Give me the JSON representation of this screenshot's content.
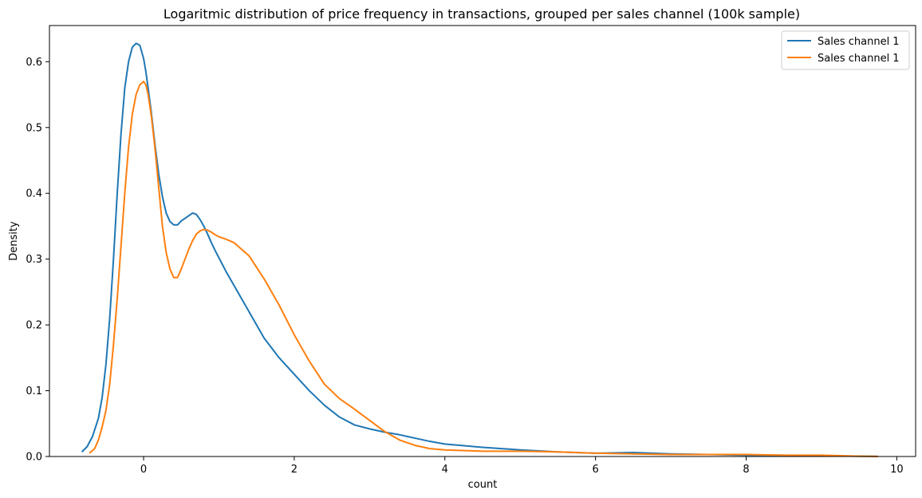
{
  "chart_data": {
    "type": "line",
    "title": "Logaritmic distribution of price frequency in transactions, grouped per sales channel (100k sample)",
    "xlabel": "count",
    "ylabel": "Density",
    "xlim": [
      -1.25,
      10.25
    ],
    "ylim": [
      0,
      0.655
    ],
    "xticks": [
      0,
      2,
      4,
      6,
      8,
      10
    ],
    "yticks": [
      0.0,
      0.1,
      0.2,
      0.3,
      0.4,
      0.5,
      0.6
    ],
    "grid": false,
    "legend": "top-right",
    "series": [
      {
        "name": "Sales channel 1",
        "color": "#1f77b4",
        "x": [
          -0.82,
          -0.75,
          -0.68,
          -0.6,
          -0.55,
          -0.5,
          -0.45,
          -0.4,
          -0.35,
          -0.3,
          -0.25,
          -0.2,
          -0.15,
          -0.1,
          -0.05,
          0.0,
          0.03,
          0.06,
          0.1,
          0.15,
          0.2,
          0.25,
          0.3,
          0.35,
          0.4,
          0.45,
          0.5,
          0.55,
          0.6,
          0.65,
          0.7,
          0.75,
          0.8,
          0.85,
          0.9,
          0.95,
          1.0,
          1.1,
          1.2,
          1.4,
          1.6,
          1.8,
          2.0,
          2.2,
          2.4,
          2.6,
          2.8,
          3.0,
          3.2,
          3.4,
          3.6,
          3.8,
          4.0,
          4.5,
          5.0,
          5.5,
          6.0,
          6.5,
          7.0,
          7.5,
          8.0,
          8.5,
          9.0,
          9.5,
          9.75
        ],
        "y": [
          0.007,
          0.015,
          0.03,
          0.058,
          0.09,
          0.14,
          0.21,
          0.3,
          0.4,
          0.49,
          0.56,
          0.6,
          0.622,
          0.628,
          0.625,
          0.605,
          0.585,
          0.56,
          0.525,
          0.475,
          0.43,
          0.395,
          0.37,
          0.357,
          0.352,
          0.352,
          0.358,
          0.362,
          0.366,
          0.37,
          0.368,
          0.36,
          0.35,
          0.338,
          0.325,
          0.313,
          0.302,
          0.28,
          0.26,
          0.22,
          0.18,
          0.15,
          0.125,
          0.1,
          0.078,
          0.06,
          0.048,
          0.042,
          0.037,
          0.033,
          0.028,
          0.023,
          0.019,
          0.014,
          0.01,
          0.007,
          0.005,
          0.006,
          0.004,
          0.003,
          0.002,
          0.002,
          0.001,
          0.0005,
          0.0002
        ]
      },
      {
        "name": "Sales channel 1",
        "color": "#ff7f0e",
        "x": [
          -0.72,
          -0.65,
          -0.6,
          -0.55,
          -0.5,
          -0.45,
          -0.4,
          -0.35,
          -0.3,
          -0.25,
          -0.2,
          -0.15,
          -0.1,
          -0.05,
          0.0,
          0.03,
          0.06,
          0.1,
          0.15,
          0.2,
          0.25,
          0.3,
          0.35,
          0.4,
          0.45,
          0.5,
          0.55,
          0.6,
          0.65,
          0.7,
          0.75,
          0.8,
          0.85,
          0.9,
          0.95,
          1.0,
          1.1,
          1.2,
          1.4,
          1.6,
          1.8,
          2.0,
          2.2,
          2.4,
          2.6,
          2.8,
          3.0,
          3.2,
          3.4,
          3.6,
          3.8,
          4.0,
          4.5,
          5.0,
          5.5,
          6.0,
          6.5,
          7.0,
          7.5,
          8.0,
          8.5,
          9.0,
          9.5,
          9.75
        ],
        "y": [
          0.005,
          0.012,
          0.025,
          0.045,
          0.07,
          0.11,
          0.17,
          0.24,
          0.32,
          0.4,
          0.47,
          0.52,
          0.55,
          0.565,
          0.57,
          0.565,
          0.55,
          0.52,
          0.47,
          0.41,
          0.35,
          0.31,
          0.285,
          0.272,
          0.272,
          0.285,
          0.3,
          0.315,
          0.328,
          0.338,
          0.343,
          0.345,
          0.344,
          0.341,
          0.337,
          0.334,
          0.33,
          0.325,
          0.305,
          0.27,
          0.23,
          0.185,
          0.145,
          0.11,
          0.088,
          0.072,
          0.055,
          0.038,
          0.025,
          0.017,
          0.012,
          0.01,
          0.008,
          0.008,
          0.007,
          0.005,
          0.004,
          0.003,
          0.003,
          0.003,
          0.002,
          0.002,
          0.0005,
          0.0002
        ]
      }
    ]
  }
}
